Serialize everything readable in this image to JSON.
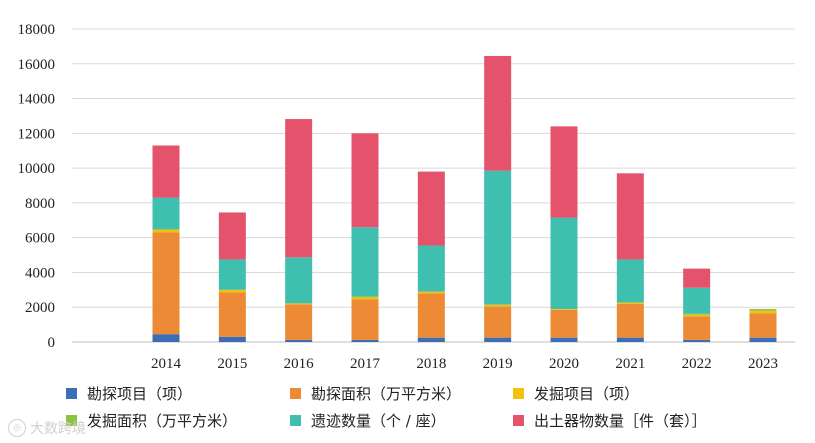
{
  "chart_data": {
    "type": "bar",
    "stacked": true,
    "categories": [
      "2014",
      "2015",
      "2016",
      "2017",
      "2018",
      "2019",
      "2020",
      "2021",
      "2022",
      "2023"
    ],
    "ylim": [
      0,
      18000
    ],
    "yticks": [
      0,
      2000,
      4000,
      6000,
      8000,
      10000,
      12000,
      14000,
      16000,
      18000
    ],
    "grid": true,
    "legend_position": "bottom",
    "series": [
      {
        "name": "勘探项目（项）",
        "color": "#3d6db3",
        "values": [
          450,
          300,
          120,
          120,
          250,
          250,
          250,
          250,
          120,
          250
        ]
      },
      {
        "name": "勘探面积（万平方米）",
        "color": "#ec8a35",
        "values": [
          5850,
          2550,
          2050,
          2330,
          2550,
          1800,
          1600,
          1950,
          1350,
          1400
        ]
      },
      {
        "name": "发掘项目（项）",
        "color": "#f2c10c",
        "values": [
          150,
          150,
          50,
          150,
          100,
          100,
          50,
          50,
          100,
          150
        ]
      },
      {
        "name": "发掘面积（万平方米）",
        "color": "#8cc341",
        "values": [
          50,
          0,
          0,
          0,
          0,
          0,
          0,
          50,
          50,
          100
        ]
      },
      {
        "name": "遗迹数量（个 / 座）",
        "color": "#3fbfb0",
        "values": [
          1800,
          1750,
          2650,
          4000,
          2650,
          7700,
          5250,
          2450,
          1500,
          0
        ]
      },
      {
        "name": "出土器物数量［件（套）］",
        "color": "#e5526b",
        "values": [
          3000,
          2700,
          7950,
          5400,
          4250,
          6600,
          5250,
          4950,
          1100,
          0
        ]
      }
    ]
  },
  "watermark": {
    "text": "大数跨境"
  }
}
